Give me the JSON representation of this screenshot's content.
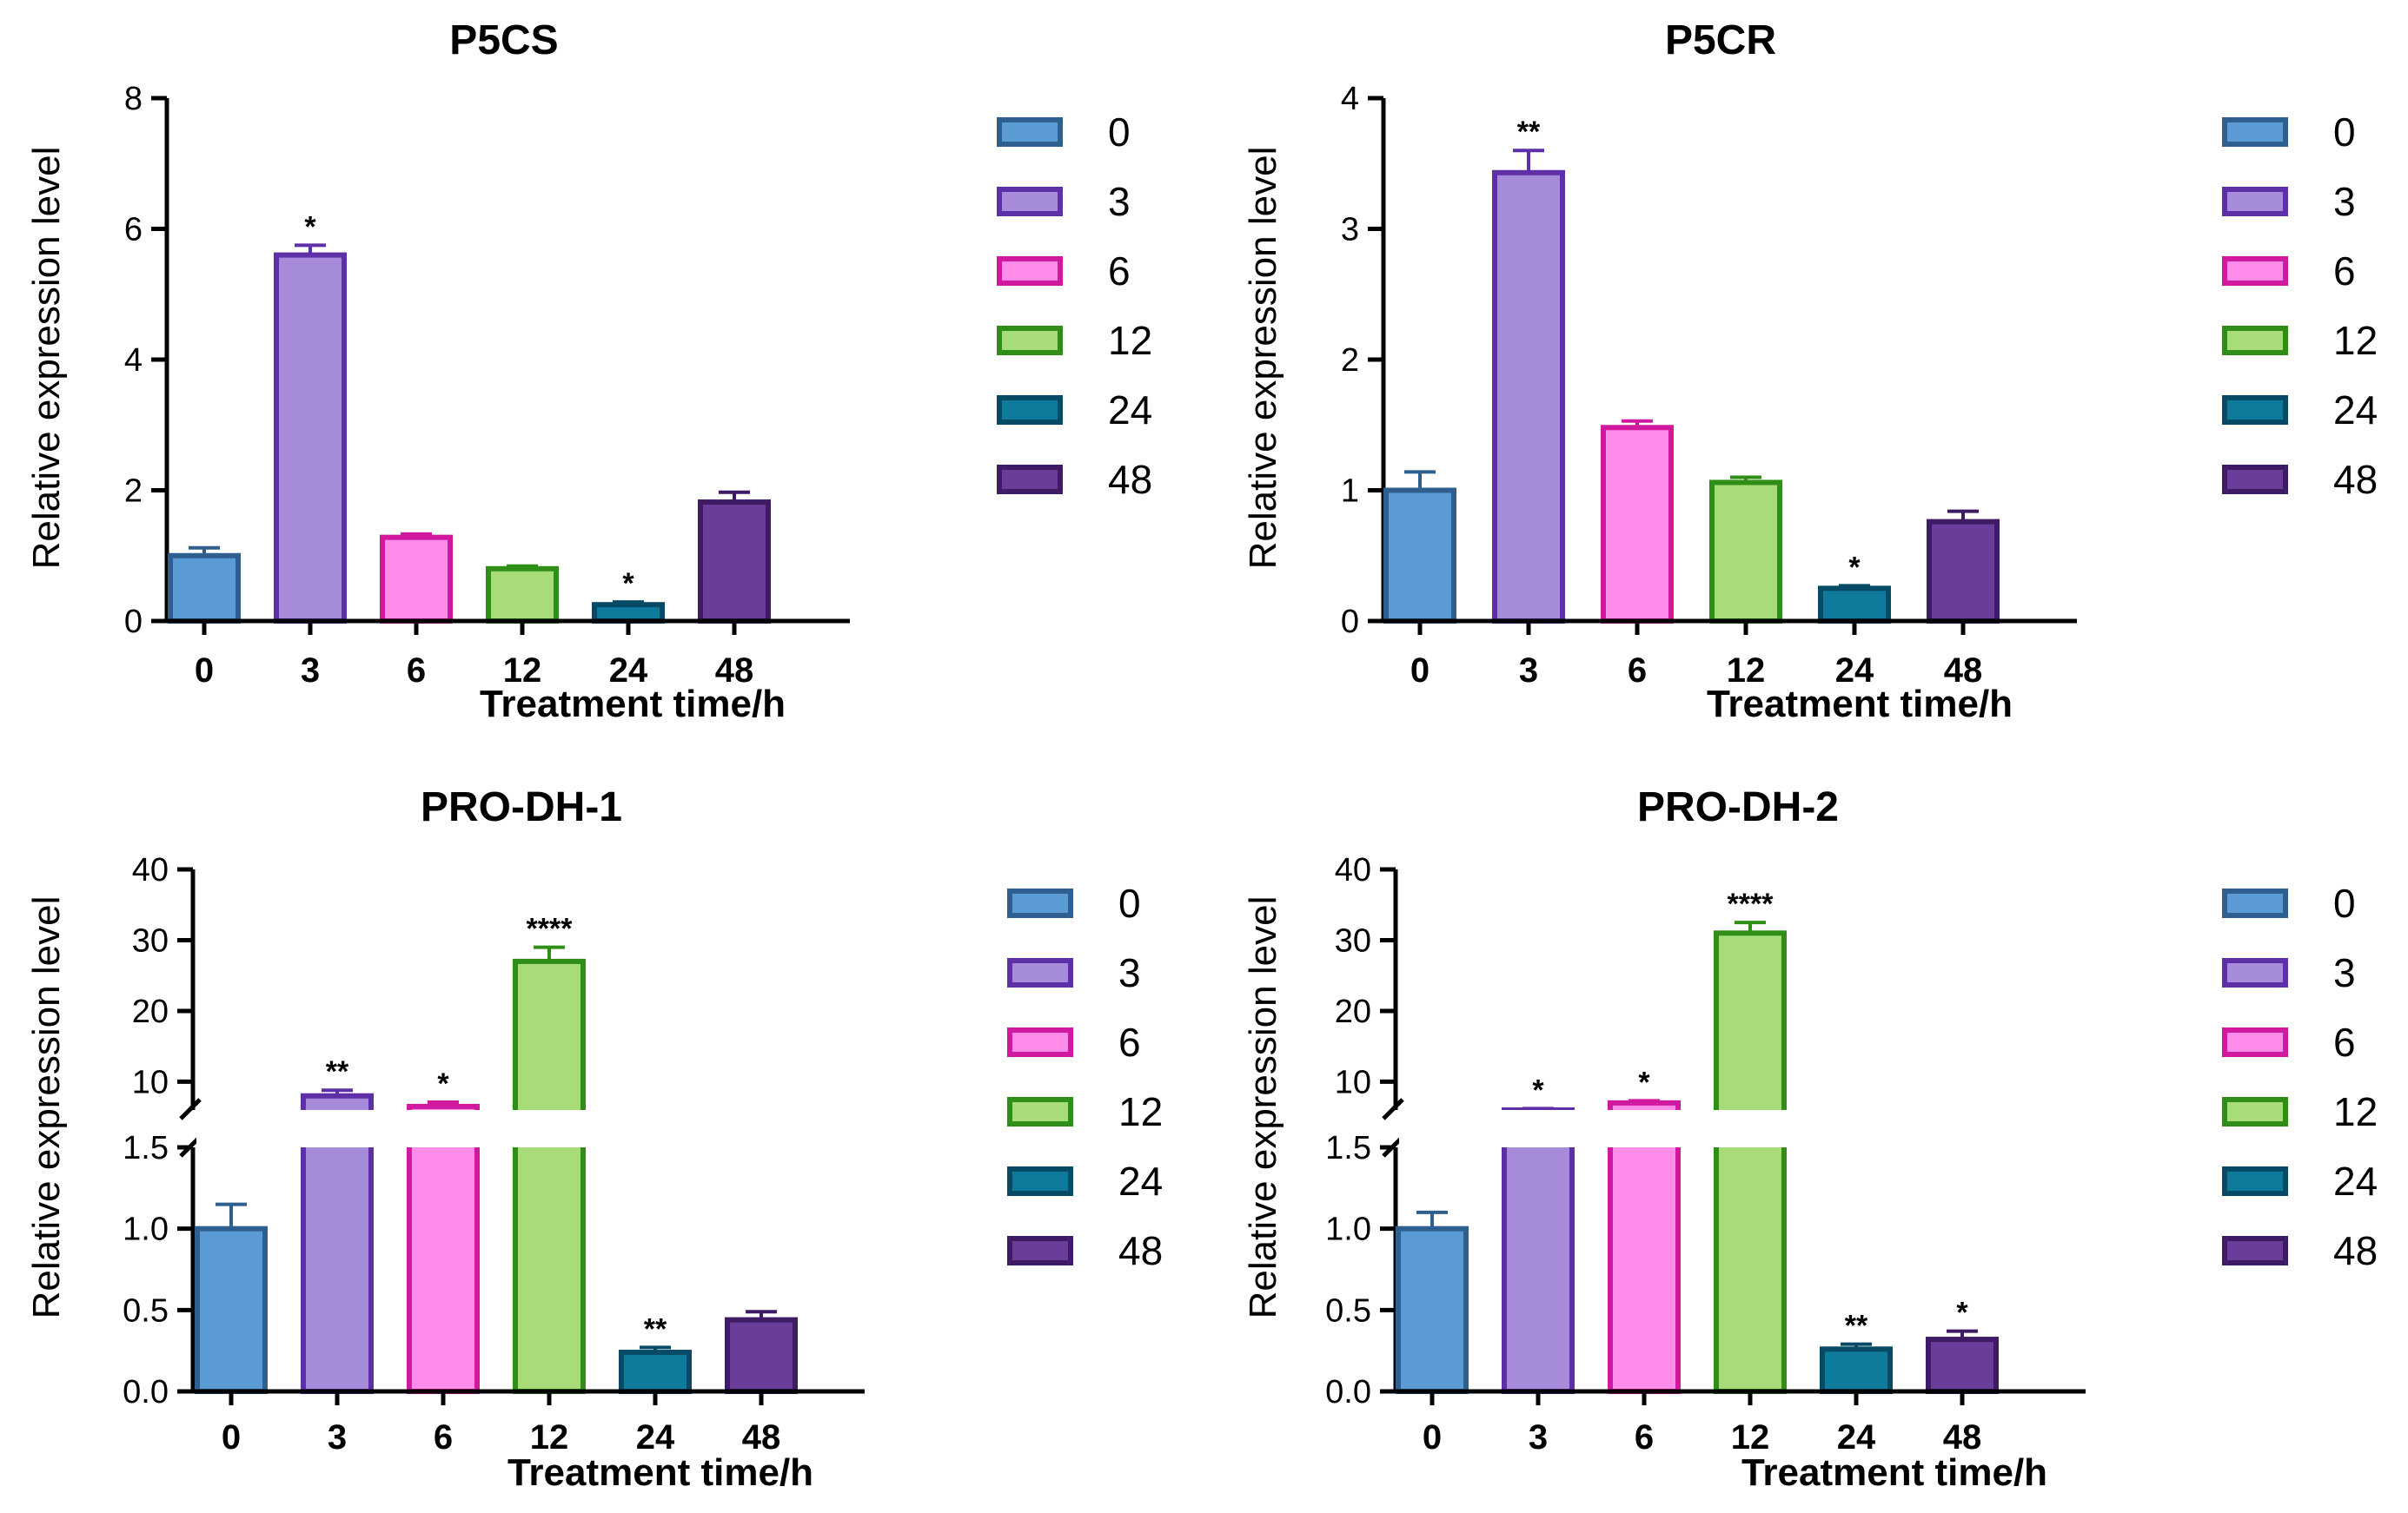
{
  "colors": {
    "fills": [
      "#5B9BD5",
      "#A78BDB",
      "#FF8CE9",
      "#A8DC79",
      "#0E7A9C",
      "#6A3D9A"
    ],
    "strokes": [
      "#2E5F8F",
      "#5F2FA8",
      "#D0199E",
      "#2F8E16",
      "#064A66",
      "#3F1B66"
    ]
  },
  "legend": {
    "entries": [
      "0",
      "3",
      "6",
      "12",
      "24",
      "48"
    ]
  },
  "chart_data": [
    {
      "type": "bar",
      "title": "P5CS",
      "xlabel": "Treatment time/h",
      "ylabel": "Relative expression level",
      "categories": [
        "0",
        "3",
        "6",
        "12",
        "24",
        "48"
      ],
      "values": [
        1.0,
        5.6,
        1.28,
        0.8,
        0.25,
        1.82
      ],
      "errors": [
        0.12,
        0.15,
        0.05,
        0.04,
        0.04,
        0.15
      ],
      "significance": [
        "",
        "*",
        "",
        "",
        "*",
        ""
      ],
      "ylim": [
        0,
        8
      ],
      "yticks": [
        0,
        2,
        4,
        6,
        8
      ],
      "broken_axis": false
    },
    {
      "type": "bar",
      "title": "P5CR",
      "xlabel": "Treatment time/h",
      "ylabel": "Relative expression level",
      "categories": [
        "0",
        "3",
        "6",
        "12",
        "24",
        "48"
      ],
      "values": [
        1.0,
        3.43,
        1.48,
        1.06,
        0.25,
        0.76
      ],
      "errors": [
        0.14,
        0.17,
        0.05,
        0.04,
        0.02,
        0.08
      ],
      "significance": [
        "",
        "**",
        "",
        "",
        "*",
        ""
      ],
      "ylim": [
        0,
        4
      ],
      "yticks": [
        0,
        1,
        2,
        3,
        4
      ],
      "broken_axis": false
    },
    {
      "type": "bar",
      "title": "PRO-DH-1",
      "xlabel": "Treatment time/h",
      "ylabel": "Relative expression level",
      "categories": [
        "0",
        "3",
        "6",
        "12",
        "24",
        "48"
      ],
      "values": [
        1.0,
        8.0,
        6.5,
        27.0,
        0.24,
        0.44
      ],
      "errors": [
        0.15,
        0.8,
        0.6,
        2.0,
        0.03,
        0.05
      ],
      "significance": [
        "",
        "**",
        "*",
        "****",
        "**",
        ""
      ],
      "broken_axis": true,
      "lower_ylim": [
        0,
        1.5
      ],
      "lower_yticks": [
        "0.0",
        "0.5",
        "1.0",
        "1.5"
      ],
      "upper_ylim": [
        6,
        40
      ],
      "upper_yticks": [
        "10",
        "20",
        "30",
        "40"
      ]
    },
    {
      "type": "bar",
      "title": "PRO-DH-2",
      "xlabel": "Treatment time/h",
      "ylabel": "Relative expression level",
      "categories": [
        "0",
        "3",
        "6",
        "12",
        "24",
        "48"
      ],
      "values": [
        1.0,
        6.0,
        7.0,
        31.0,
        0.26,
        0.32
      ],
      "errors": [
        0.1,
        0.2,
        0.3,
        1.5,
        0.03,
        0.05
      ],
      "significance": [
        "",
        "*",
        "*",
        "****",
        "**",
        "*"
      ],
      "broken_axis": true,
      "lower_ylim": [
        0,
        1.5
      ],
      "lower_yticks": [
        "0.0",
        "0.5",
        "1.0",
        "1.5"
      ],
      "upper_ylim": [
        6,
        40
      ],
      "upper_yticks": [
        "10",
        "20",
        "30",
        "40"
      ]
    }
  ]
}
